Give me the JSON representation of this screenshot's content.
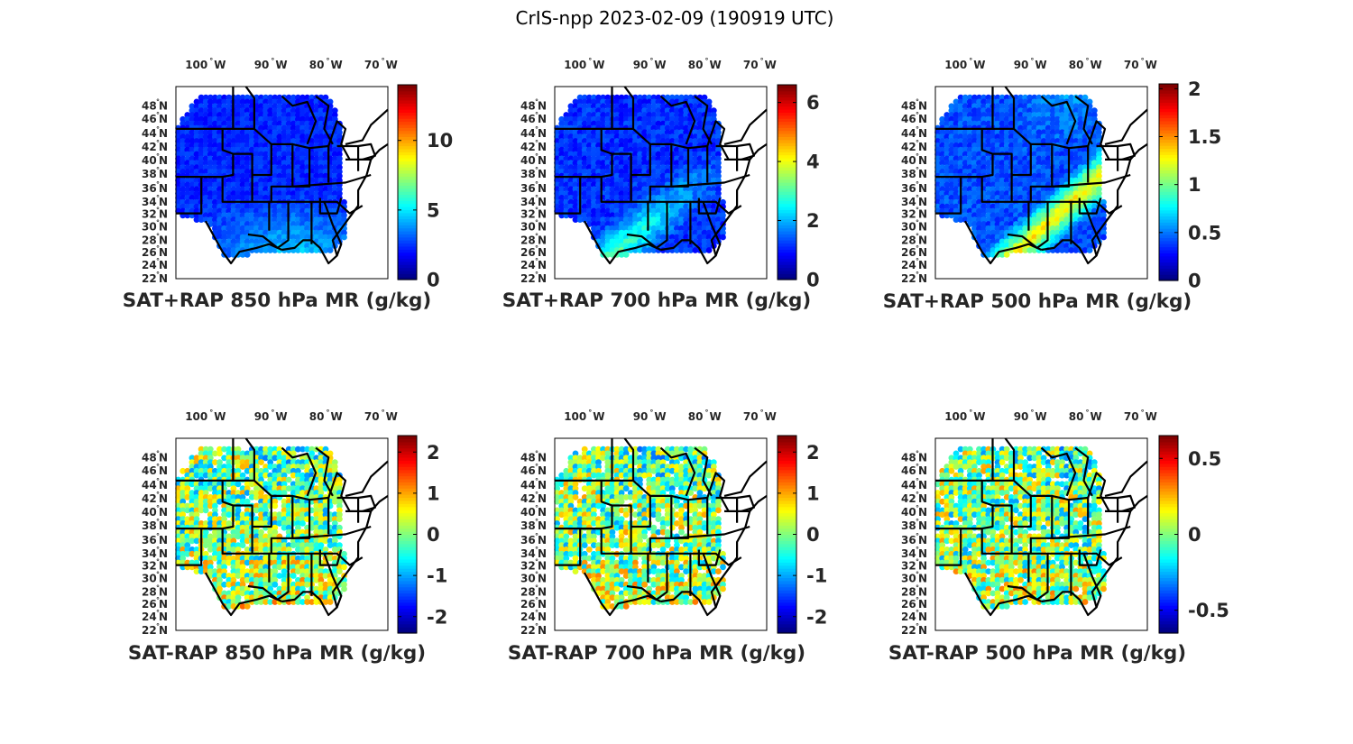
{
  "figure_title": "CrIS-npp 2023-02-09 (190919 UTC)",
  "chart_data": [
    {
      "type": "heatmap",
      "title": "SAT+RAP 850 hPa MR (g/kg)",
      "colormap": "jet",
      "clim": [
        0,
        14
      ],
      "colorbar_ticks": [
        {
          "v": 0,
          "label": "0"
        },
        {
          "v": 5,
          "label": "5"
        },
        {
          "v": 10,
          "label": "10"
        }
      ],
      "xaxis_ticks": [
        "100°W",
        "90°W",
        "80°W",
        "70°W"
      ],
      "yaxis_ticks": [
        "22°N",
        "24°N",
        "26°N",
        "28°N",
        "30°N",
        "32°N",
        "34°N",
        "36°N",
        "38°N",
        "40°N",
        "42°N",
        "44°N",
        "46°N",
        "48°N"
      ],
      "field": "total",
      "variable": "850 hPa water vapor mixing ratio"
    },
    {
      "type": "heatmap",
      "title": "SAT+RAP 700 hPa MR (g/kg)",
      "colormap": "jet",
      "clim": [
        0,
        6.6
      ],
      "colorbar_ticks": [
        {
          "v": 0,
          "label": "0"
        },
        {
          "v": 2,
          "label": "2"
        },
        {
          "v": 4,
          "label": "4"
        },
        {
          "v": 6,
          "label": "6"
        }
      ],
      "xaxis_ticks": [
        "100°W",
        "90°W",
        "80°W",
        "70°W"
      ],
      "yaxis_ticks": [
        "22°N",
        "24°N",
        "26°N",
        "28°N",
        "30°N",
        "32°N",
        "34°N",
        "36°N",
        "38°N",
        "40°N",
        "42°N",
        "44°N",
        "46°N",
        "48°N"
      ],
      "field": "total",
      "variable": "700 hPa water vapor mixing ratio"
    },
    {
      "type": "heatmap",
      "title": "SAT+RAP 500 hPa MR (g/kg)",
      "colormap": "jet",
      "clim": [
        0,
        2.05
      ],
      "colorbar_ticks": [
        {
          "v": 0,
          "label": "0"
        },
        {
          "v": 0.5,
          "label": "0.5"
        },
        {
          "v": 1,
          "label": "1"
        },
        {
          "v": 1.5,
          "label": "1.5"
        },
        {
          "v": 2,
          "label": "2"
        }
      ],
      "xaxis_ticks": [
        "100°W",
        "90°W",
        "80°W",
        "70°W"
      ],
      "yaxis_ticks": [
        "22°N",
        "24°N",
        "26°N",
        "28°N",
        "30°N",
        "32°N",
        "34°N",
        "36°N",
        "38°N",
        "40°N",
        "42°N",
        "44°N",
        "46°N",
        "48°N"
      ],
      "field": "total",
      "variable": "500 hPa water vapor mixing ratio"
    },
    {
      "type": "heatmap",
      "title": "SAT-RAP 850 hPa MR (g/kg)",
      "colormap": "jet",
      "clim": [
        -2.4,
        2.4
      ],
      "colorbar_ticks": [
        {
          "v": -2,
          "label": "-2"
        },
        {
          "v": -1,
          "label": "-1"
        },
        {
          "v": 0,
          "label": "0"
        },
        {
          "v": 1,
          "label": "1"
        },
        {
          "v": 2,
          "label": "2"
        }
      ],
      "xaxis_ticks": [
        "100°W",
        "90°W",
        "80°W",
        "70°W"
      ],
      "yaxis_ticks": [
        "22°N",
        "24°N",
        "26°N",
        "28°N",
        "30°N",
        "32°N",
        "34°N",
        "36°N",
        "38°N",
        "40°N",
        "42°N",
        "44°N",
        "46°N",
        "48°N"
      ],
      "field": "difference",
      "variable": "850 hPa water vapor mixing ratio"
    },
    {
      "type": "heatmap",
      "title": "SAT-RAP 700 hPa MR (g/kg)",
      "colormap": "jet",
      "clim": [
        -2.4,
        2.4
      ],
      "colorbar_ticks": [
        {
          "v": -2,
          "label": "-2"
        },
        {
          "v": -1,
          "label": "-1"
        },
        {
          "v": 0,
          "label": "0"
        },
        {
          "v": 1,
          "label": "1"
        },
        {
          "v": 2,
          "label": "2"
        }
      ],
      "xaxis_ticks": [
        "100°W",
        "90°W",
        "80°W",
        "70°W"
      ],
      "yaxis_ticks": [
        "22°N",
        "24°N",
        "26°N",
        "28°N",
        "30°N",
        "32°N",
        "34°N",
        "36°N",
        "38°N",
        "40°N",
        "42°N",
        "44°N",
        "46°N",
        "48°N"
      ],
      "field": "difference",
      "variable": "700 hPa water vapor mixing ratio"
    },
    {
      "type": "heatmap",
      "title": "SAT-RAP 500 hPa MR (g/kg)",
      "colormap": "jet",
      "clim": [
        -0.65,
        0.65
      ],
      "colorbar_ticks": [
        {
          "v": -0.5,
          "label": "-0.5"
        },
        {
          "v": 0,
          "label": "0"
        },
        {
          "v": 0.5,
          "label": "0.5"
        }
      ],
      "xaxis_ticks": [
        "100°W",
        "90°W",
        "80°W",
        "70°W"
      ],
      "yaxis_ticks": [
        "22°N",
        "24°N",
        "26°N",
        "28°N",
        "30°N",
        "32°N",
        "34°N",
        "36°N",
        "38°N",
        "40°N",
        "42°N",
        "44°N",
        "46°N",
        "48°N"
      ],
      "field": "difference",
      "variable": "500 hPa water vapor mixing ratio"
    }
  ],
  "colors": {
    "axis": "#000000",
    "text": "#262626",
    "background": "#ffffff"
  }
}
